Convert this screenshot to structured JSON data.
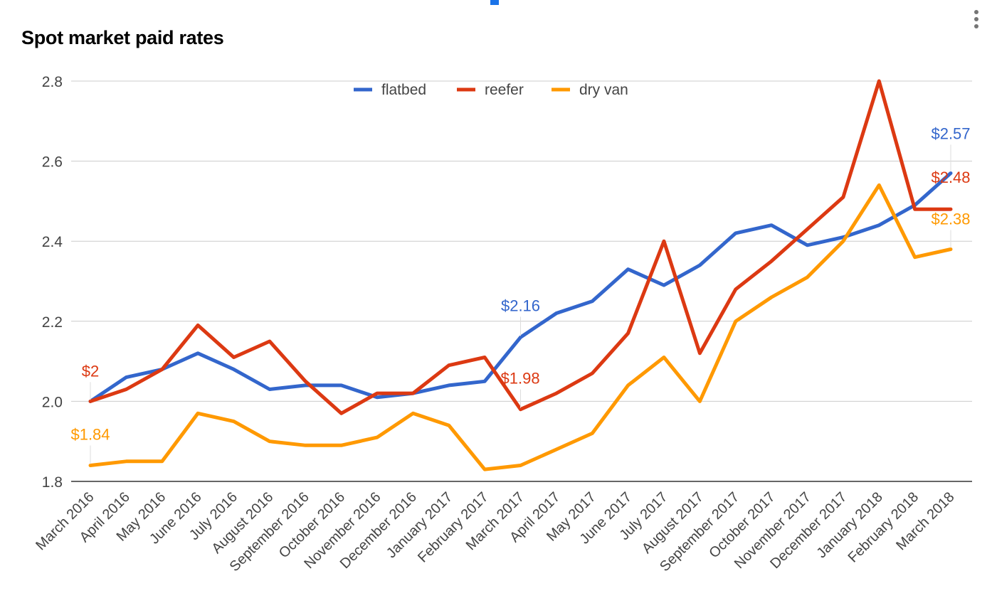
{
  "chart_data": {
    "type": "line",
    "title": "Spot market paid rates",
    "xlabel": "",
    "ylabel": "",
    "ylim": [
      1.8,
      2.8
    ],
    "yticks": [
      1.8,
      2.0,
      2.2,
      2.4,
      2.6,
      2.8
    ],
    "ytick_labels": [
      "1.8",
      "2.0",
      "2.2",
      "2.4",
      "2.6",
      "2.8"
    ],
    "grid": true,
    "legend_position": "top-center",
    "categories": [
      "March 2016",
      "April 2016",
      "May 2016",
      "June 2016",
      "July 2016",
      "August 2016",
      "September 2016",
      "October 2016",
      "November 2016",
      "December 2016",
      "January 2017",
      "February 2017",
      "March 2017",
      "April 2017",
      "May 2017",
      "June 2017",
      "July 2017",
      "August 2017",
      "September 2017",
      "October 2017",
      "November 2017",
      "December 2017",
      "January 2018",
      "February 2018",
      "March 2018"
    ],
    "series": [
      {
        "name": "flatbed",
        "color": "#3366cc",
        "values": [
          2.0,
          2.06,
          2.08,
          2.12,
          2.08,
          2.03,
          2.04,
          2.04,
          2.01,
          2.02,
          2.04,
          2.05,
          2.16,
          2.22,
          2.25,
          2.33,
          2.29,
          2.34,
          2.42,
          2.44,
          2.39,
          2.41,
          2.44,
          2.49,
          2.57
        ]
      },
      {
        "name": "reefer",
        "color": "#dc3912",
        "values": [
          2.0,
          2.03,
          2.08,
          2.19,
          2.11,
          2.15,
          2.05,
          1.97,
          2.02,
          2.02,
          2.09,
          2.11,
          1.98,
          2.02,
          2.07,
          2.17,
          2.4,
          2.12,
          2.28,
          2.35,
          2.43,
          2.51,
          2.8,
          2.48,
          2.48
        ]
      },
      {
        "name": "dry van",
        "color": "#ff9900",
        "values": [
          1.84,
          1.85,
          1.85,
          1.97,
          1.95,
          1.9,
          1.89,
          1.89,
          1.91,
          1.97,
          1.94,
          1.83,
          1.84,
          1.88,
          1.92,
          2.04,
          2.11,
          2.0,
          2.2,
          2.26,
          2.31,
          2.4,
          2.54,
          2.36,
          2.38
        ]
      }
    ],
    "annotations": [
      {
        "series": "reefer",
        "index": 0,
        "text": "$2"
      },
      {
        "series": "dry van",
        "index": 0,
        "text": "$1.84"
      },
      {
        "series": "flatbed",
        "index": 12,
        "text": "$2.16"
      },
      {
        "series": "reefer",
        "index": 12,
        "text": "$1.98"
      },
      {
        "series": "flatbed",
        "index": 24,
        "text": "$2.57"
      },
      {
        "series": "reefer",
        "index": 24,
        "text": "$2.48"
      },
      {
        "series": "dry van",
        "index": 24,
        "text": "$2.38"
      }
    ]
  },
  "colors": {
    "grid": "#cccccc",
    "axis_text": "#444444",
    "accent": "#1a73e8"
  },
  "icons": {
    "menu": "more-vert-icon"
  }
}
